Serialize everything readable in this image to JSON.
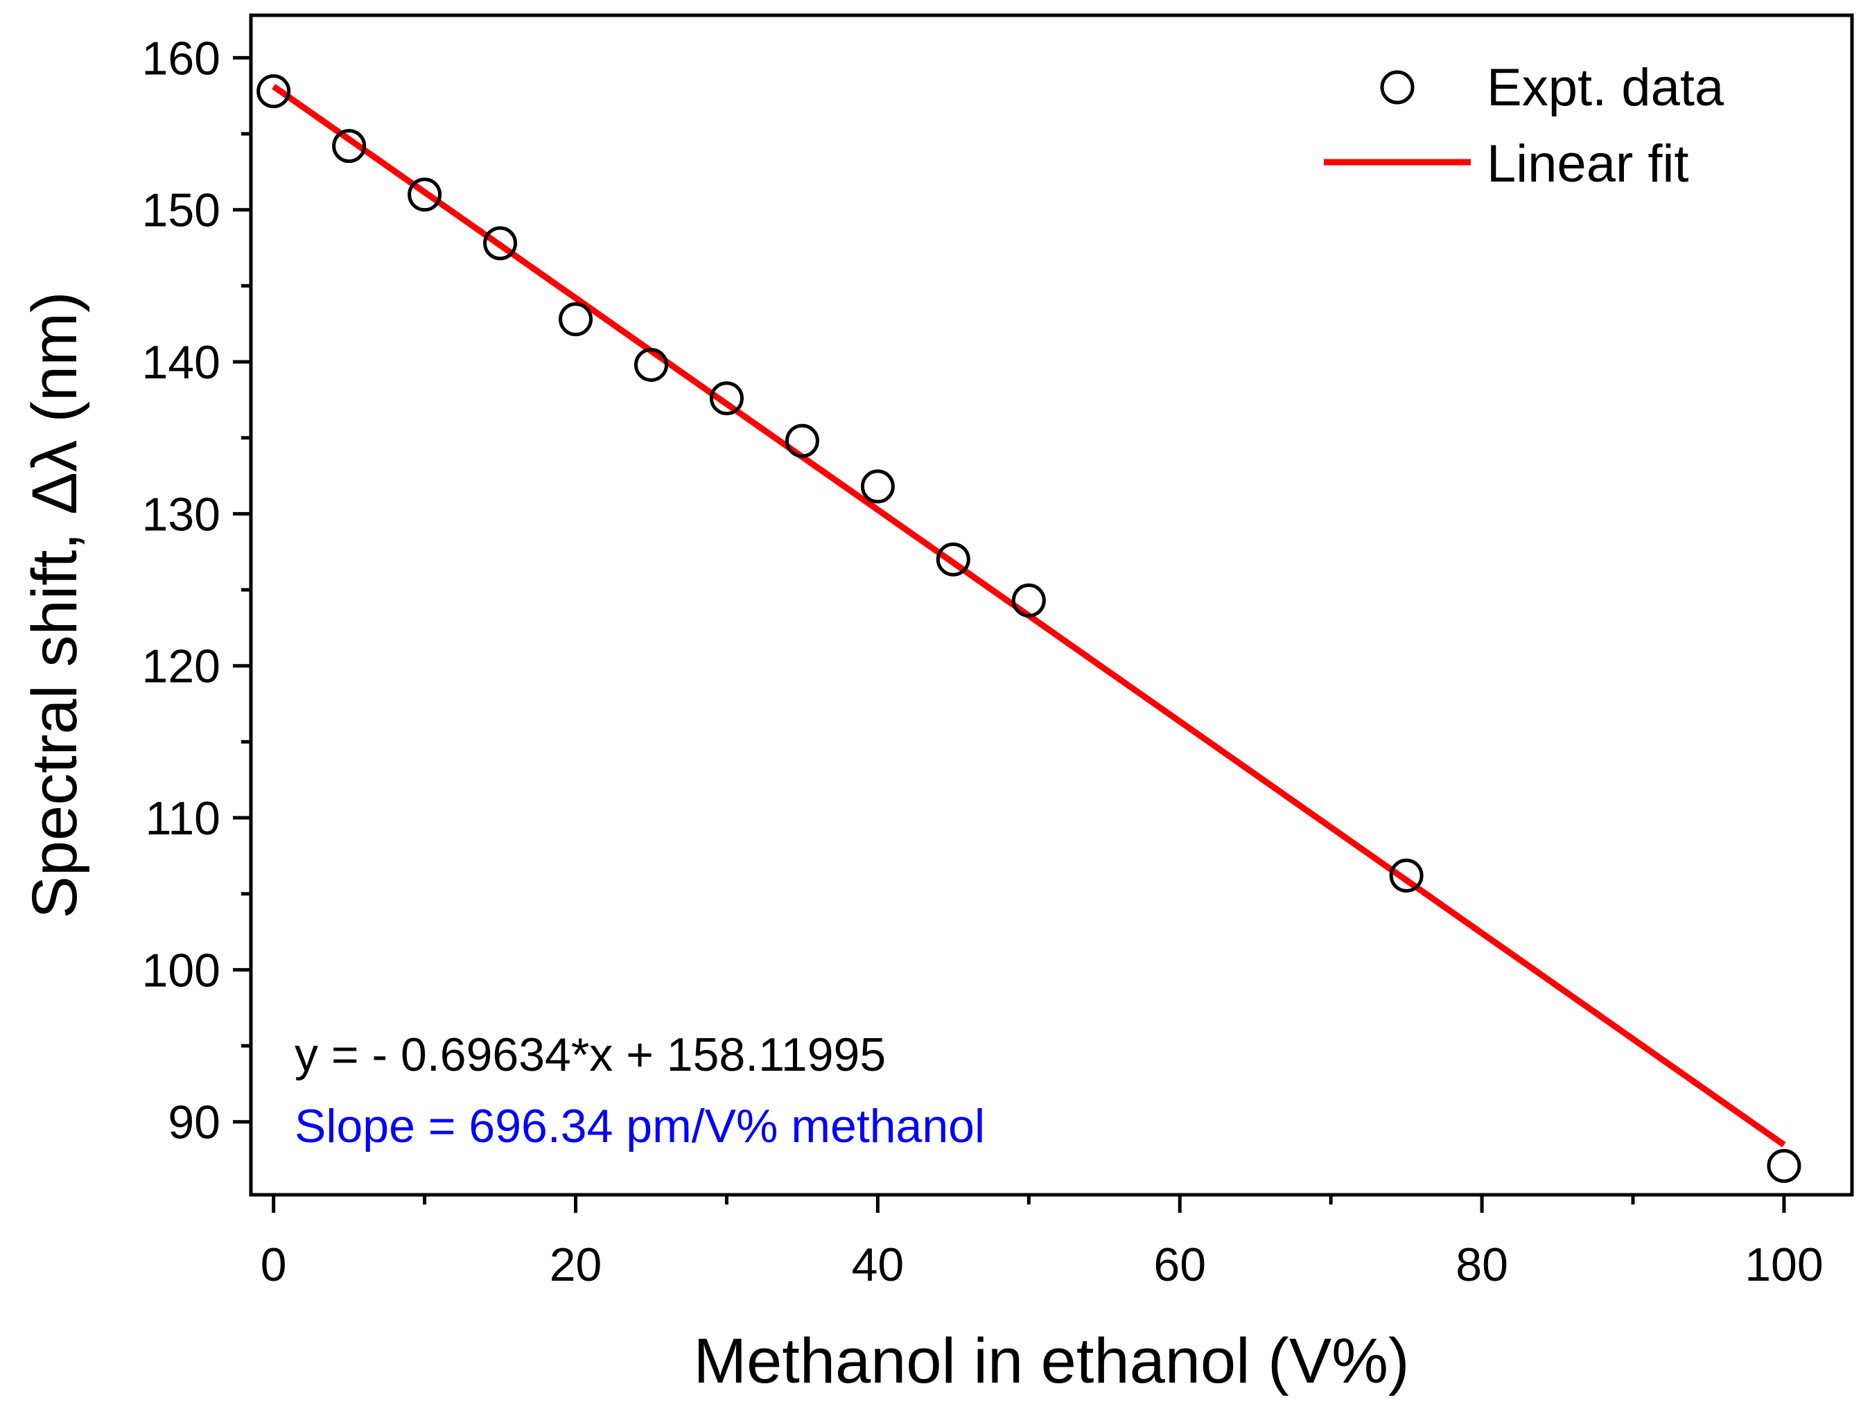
{
  "chart_data": {
    "type": "scatter",
    "title": "",
    "xlabel": "Methanol in ethanol (V%)",
    "ylabel": "Spectral shift, Δλ (nm)",
    "xlim": [
      -1.5,
      104.5
    ],
    "ylim": [
      85.2,
      162.8
    ],
    "x_ticks": [
      0,
      20,
      40,
      60,
      80,
      100
    ],
    "y_ticks": [
      90,
      100,
      110,
      120,
      130,
      140,
      150,
      160
    ],
    "x_minor_step": 10,
    "y_minor_step": 5,
    "series": [
      {
        "name": "Expt. data",
        "kind": "scatter",
        "marker": "open-circle",
        "color": "#000000",
        "x": [
          0,
          5,
          10,
          15,
          20,
          25,
          30,
          35,
          40,
          45,
          50,
          75,
          100
        ],
        "y": [
          157.8,
          154.2,
          151.0,
          147.8,
          142.8,
          139.8,
          137.6,
          134.8,
          131.8,
          127.0,
          124.3,
          106.2,
          87.1
        ]
      },
      {
        "name": "Linear fit",
        "kind": "line",
        "color": "#ff0000",
        "slope": -0.69634,
        "intercept": 158.11995,
        "x_range": [
          0,
          100
        ]
      }
    ],
    "legend": {
      "position": "top-right",
      "entries": [
        "Expt. data",
        "Linear fit"
      ]
    },
    "annotations": {
      "equation": "y = - 0.69634*x + 158.11995",
      "slope_text": "Slope = 696.34 pm/V% methanol",
      "slope_color": "#0000ff"
    },
    "grid": false
  }
}
